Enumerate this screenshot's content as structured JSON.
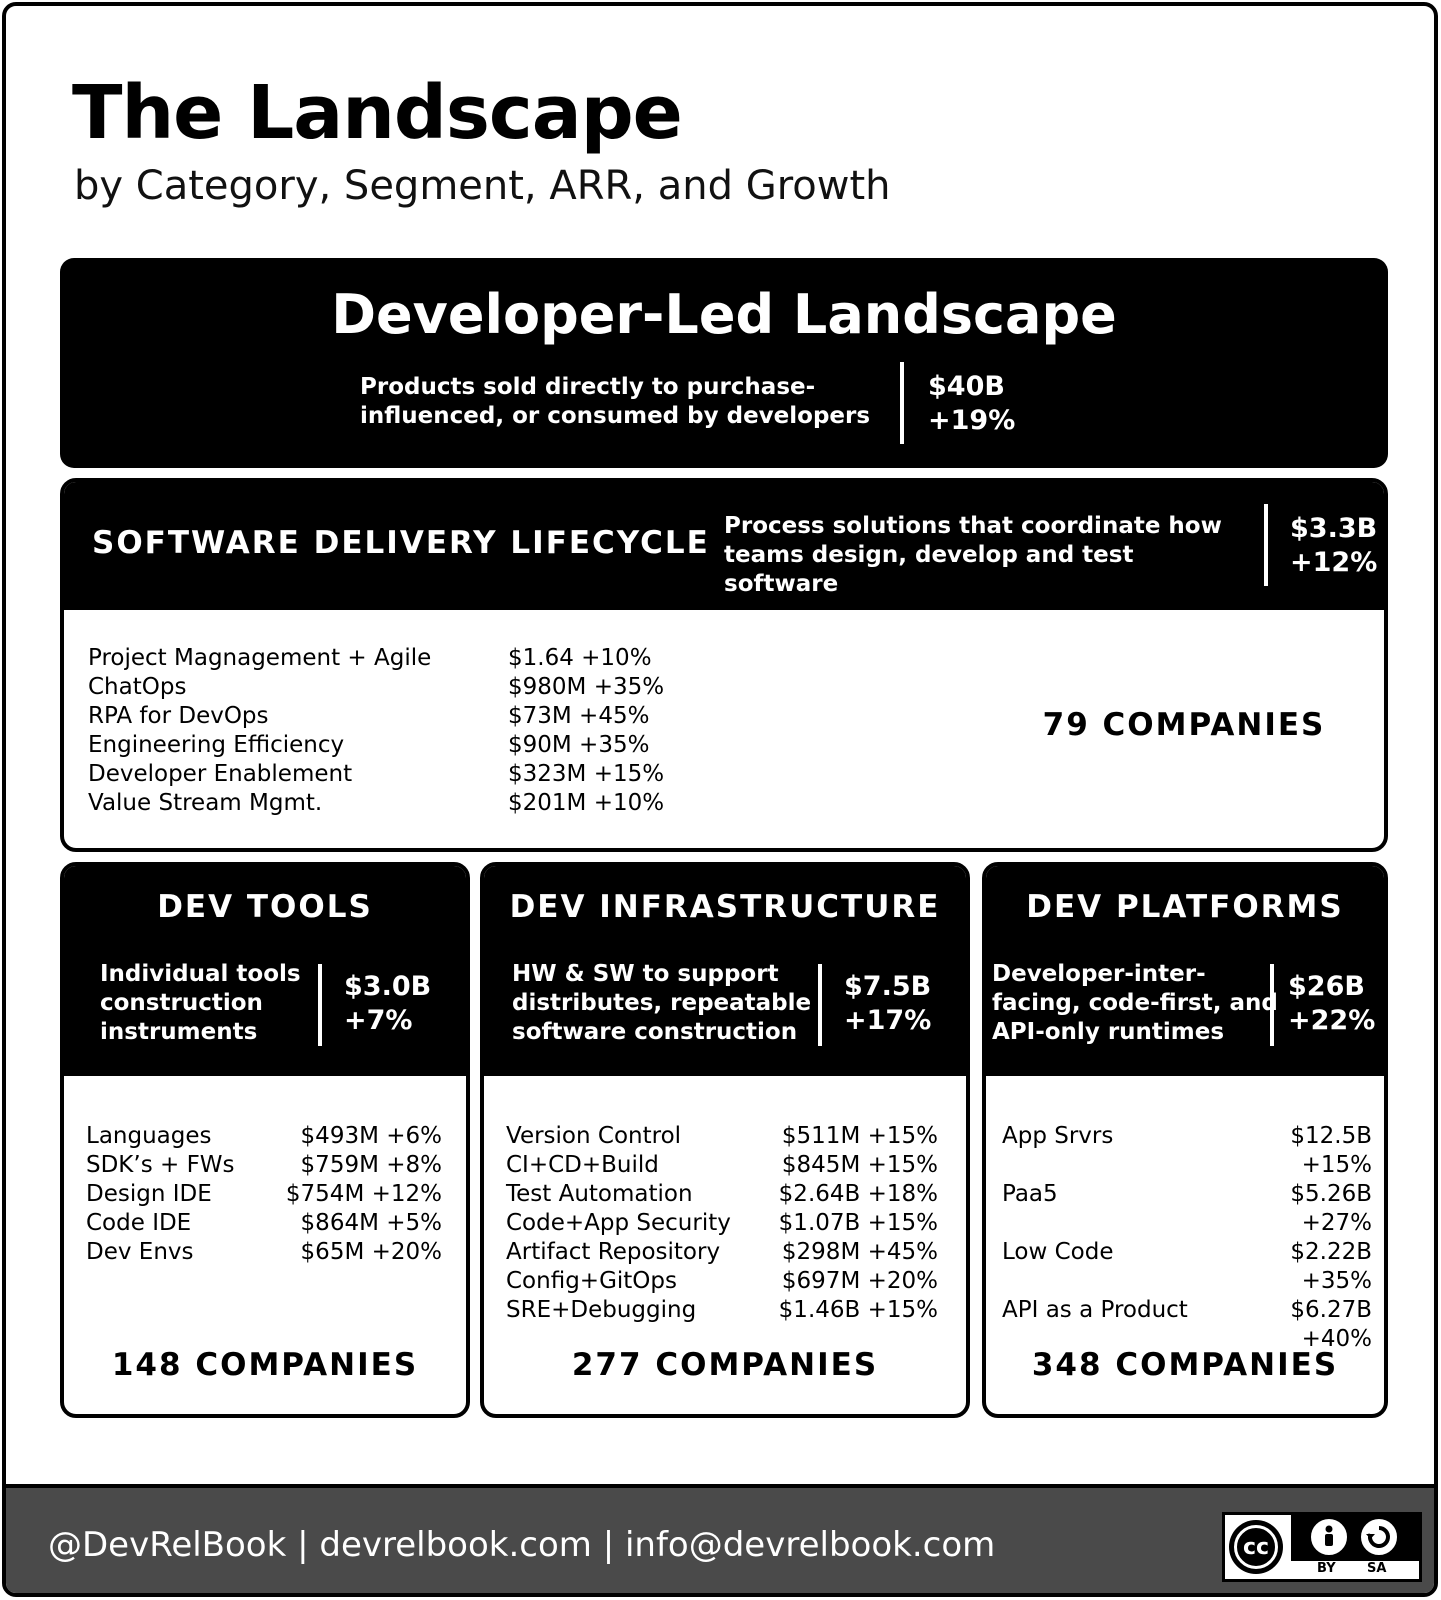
{
  "header": {
    "title": "The Landscape",
    "subtitle": "by Category, Segment, ARR, and Growth"
  },
  "hero": {
    "title": "Developer-Led Landscape",
    "description": "Products sold directly to purchase-influenced, or consumed by developers",
    "arr": "$40B",
    "growth": "+19%"
  },
  "sdlc": {
    "title": "SOFTWARE DELIVERY LIFECYCLE",
    "description": "Process solutions that coordinate how teams design, develop and test software",
    "arr": "$3.3B",
    "growth": "+12%",
    "items": [
      {
        "label": "Project Magnagement + Agile",
        "value": "$1.64 +10%"
      },
      {
        "label": "ChatOps",
        "value": "$980M +35%"
      },
      {
        "label": "RPA for DevOps",
        "value": "$73M +45%"
      },
      {
        "label": "Engineering Efficiency",
        "value": "$90M +35%"
      },
      {
        "label": "Developer Enablement",
        "value": "$323M +15%"
      },
      {
        "label": "Value Stream Mgmt.",
        "value": "$201M +10%"
      }
    ],
    "companies": "79 COMPANIES"
  },
  "tools": {
    "title": "DEV TOOLS",
    "description": "Individual tools construction instruments",
    "arr": "$3.0B",
    "growth": "+7%",
    "items": [
      {
        "label": "Languages",
        "value": "$493M +6%"
      },
      {
        "label": "SDK’s + FWs",
        "value": "$759M +8%"
      },
      {
        "label": "Design IDE",
        "value": "$754M +12%"
      },
      {
        "label": "Code IDE",
        "value": "$864M +5%"
      },
      {
        "label": "Dev Envs",
        "value": "$65M +20%"
      }
    ],
    "companies": "148 COMPANIES"
  },
  "infra": {
    "title": "DEV INFRASTRUCTURE",
    "description": "HW & SW to support distributes, repeatable software construction",
    "arr": "$7.5B",
    "growth": "+17%",
    "items": [
      {
        "label": "Version Control",
        "value": "$511M +15%"
      },
      {
        "label": "CI+CD+Build",
        "value": "$845M +15%"
      },
      {
        "label": "Test Automation",
        "value": "$2.64B +18%"
      },
      {
        "label": "Code+App Security",
        "value": "$1.07B +15%"
      },
      {
        "label": "Artifact Repository",
        "value": "$298M +45%"
      },
      {
        "label": "Config+GitOps",
        "value": "$697M +20%"
      },
      {
        "label": "SRE+Debugging",
        "value": "$1.46B +15%"
      }
    ],
    "companies": "277 COMPANIES"
  },
  "platforms": {
    "title": "DEV PLATFORMS",
    "description": "Developer-inter-facing, code-first, and API-only runtimes",
    "arr": "$26B",
    "growth": "+22%",
    "items": [
      {
        "label": "App Srvrs",
        "value": "$12.5B +15%"
      },
      {
        "label": "Paa5",
        "value": "$5.26B +27%"
      },
      {
        "label": "Low Code",
        "value": "$2.22B +35%"
      },
      {
        "label": "API as a Product",
        "value": "$6.27B +40%"
      }
    ],
    "companies": "348 COMPANIES"
  },
  "footer": {
    "text": "@DevRelBook  |  devrelbook.com  |  info@devrelbook.com",
    "license": {
      "cc": "cc",
      "by": "BY",
      "sa": "SA",
      "icons": [
        "creative-commons-icon",
        "attribution-icon",
        "share-alike-icon"
      ]
    }
  }
}
